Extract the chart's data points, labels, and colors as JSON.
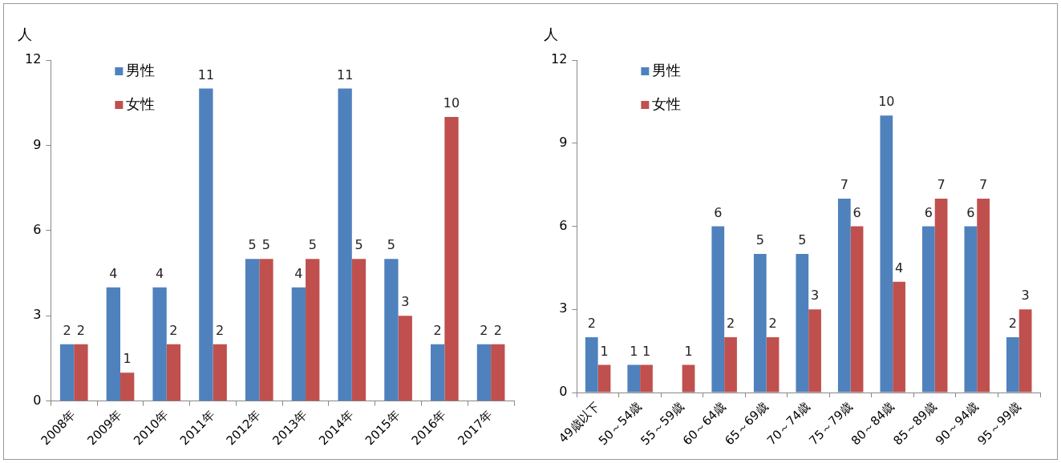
{
  "chart_data": [
    {
      "type": "bar",
      "ylabel": "人",
      "categories": [
        "2008年",
        "2009年",
        "2010年",
        "2011年",
        "2012年",
        "2013年",
        "2014年",
        "2015年",
        "2016年",
        "2017年"
      ],
      "series": [
        {
          "name": "男性",
          "color": "#4f81bd",
          "values": [
            2,
            4,
            4,
            11,
            5,
            4,
            11,
            5,
            2,
            2
          ]
        },
        {
          "name": "女性",
          "color": "#c0504d",
          "values": [
            2,
            1,
            2,
            2,
            5,
            5,
            5,
            3,
            10,
            2
          ]
        }
      ],
      "ylim": [
        0,
        12
      ],
      "yticks": [
        0,
        3,
        6,
        9,
        12
      ],
      "legend": "top left",
      "data_labels": true
    },
    {
      "type": "bar",
      "ylabel": "人",
      "categories": [
        "49歳以下",
        "50～54歳",
        "55～59歳",
        "60～64歳",
        "65～69歳",
        "70～74歳",
        "75～79歳",
        "80～84歳",
        "85～89歳",
        "90～94歳",
        "95～99歳"
      ],
      "series": [
        {
          "name": "男性",
          "color": "#4f81bd",
          "values": [
            2,
            1,
            null,
            6,
            5,
            5,
            7,
            10,
            6,
            6,
            2
          ]
        },
        {
          "name": "女性",
          "color": "#c0504d",
          "values": [
            1,
            1,
            1,
            2,
            2,
            3,
            6,
            4,
            7,
            7,
            3
          ]
        }
      ],
      "ylim": [
        0,
        12
      ],
      "yticks": [
        0,
        3,
        6,
        9,
        12
      ],
      "legend": "top left",
      "data_labels": true
    }
  ]
}
